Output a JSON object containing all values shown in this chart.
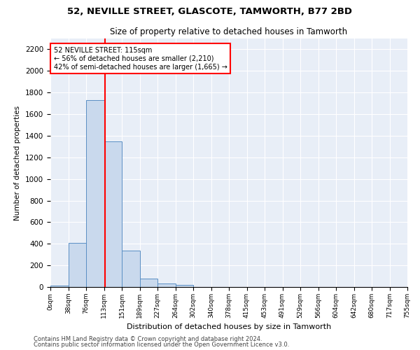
{
  "title1": "52, NEVILLE STREET, GLASCOTE, TAMWORTH, B77 2BD",
  "title2": "Size of property relative to detached houses in Tamworth",
  "xlabel": "Distribution of detached houses by size in Tamworth",
  "ylabel": "Number of detached properties",
  "bin_labels": [
    "0sqm",
    "38sqm",
    "76sqm",
    "113sqm",
    "151sqm",
    "189sqm",
    "227sqm",
    "264sqm",
    "302sqm",
    "340sqm",
    "378sqm",
    "415sqm",
    "453sqm",
    "491sqm",
    "529sqm",
    "566sqm",
    "604sqm",
    "642sqm",
    "680sqm",
    "717sqm",
    "755sqm"
  ],
  "bar_heights": [
    15,
    410,
    1730,
    1345,
    340,
    75,
    30,
    18,
    0,
    0,
    0,
    0,
    0,
    0,
    0,
    0,
    0,
    0,
    0,
    0
  ],
  "bar_color": "#c9d9ed",
  "bar_edge_color": "#5a8fc4",
  "bin_size": 37.74,
  "annotation_text": "52 NEVILLE STREET: 115sqm\n← 56% of detached houses are smaller (2,210)\n42% of semi-detached houses are larger (1,665) →",
  "annotation_box_color": "white",
  "annotation_box_edge_color": "red",
  "vline_color": "red",
  "vline_x": 115.0,
  "ylim": [
    0,
    2300
  ],
  "yticks": [
    0,
    200,
    400,
    600,
    800,
    1000,
    1200,
    1400,
    1600,
    1800,
    2000,
    2200
  ],
  "bg_color": "#e8eef7",
  "footnote1": "Contains HM Land Registry data © Crown copyright and database right 2024.",
  "footnote2": "Contains public sector information licensed under the Open Government Licence v3.0."
}
